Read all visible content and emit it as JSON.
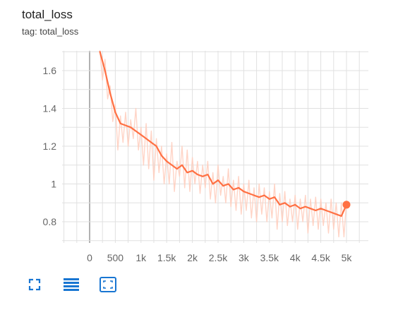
{
  "card": {
    "title": "total_loss",
    "subtitle": "tag: total_loss"
  },
  "toolbar": {
    "buttons": [
      {
        "name": "fullscreen-button",
        "icon": "fullscreen-icon"
      },
      {
        "name": "toggle-log-scale-button",
        "icon": "list-lines-icon"
      },
      {
        "name": "fit-domain-button",
        "icon": "fit-to-data-icon"
      }
    ]
  },
  "colors": {
    "series": "#ff7043",
    "series_raw": "#ffccbc",
    "grid": "#e0e0e0",
    "axis_zero": "#9e9e9e",
    "tick_text": "#666666",
    "icon": "#1976d2"
  },
  "chart_data": {
    "type": "line",
    "title": "total_loss",
    "subtitle": "tag: total_loss",
    "xlabel": "",
    "ylabel": "",
    "xlim": [
      -500,
      5400
    ],
    "ylim": [
      0.7,
      1.7
    ],
    "x_ticks": [
      0,
      500,
      1000,
      1500,
      2000,
      2500,
      3000,
      3500,
      4000,
      4500,
      5000
    ],
    "x_tick_labels": [
      "0",
      "500",
      "1k",
      "1.5k",
      "2k",
      "2.5k",
      "3k",
      "3.5k",
      "4k",
      "4.5k",
      "5k"
    ],
    "y_ticks": [
      0.8,
      1,
      1.2,
      1.4,
      1.6
    ],
    "y_tick_labels": [
      "0.8",
      "1",
      "1.2",
      "1.4",
      "1.6"
    ],
    "grid": true,
    "legend": "none",
    "series": [
      {
        "role": "smoothed",
        "x": [
          200,
          300,
          400,
          500,
          600,
          700,
          800,
          900,
          1000,
          1100,
          1200,
          1300,
          1400,
          1500,
          1600,
          1700,
          1800,
          1900,
          2000,
          2100,
          2200,
          2300,
          2400,
          2500,
          2600,
          2700,
          2800,
          2900,
          3000,
          3100,
          3200,
          3300,
          3400,
          3500,
          3600,
          3700,
          3800,
          3900,
          4000,
          4100,
          4200,
          4300,
          4400,
          4500,
          4600,
          4700,
          4800,
          4900,
          5000
        ],
        "y": [
          1.7,
          1.6,
          1.48,
          1.38,
          1.32,
          1.31,
          1.3,
          1.28,
          1.26,
          1.24,
          1.22,
          1.2,
          1.15,
          1.12,
          1.1,
          1.08,
          1.1,
          1.06,
          1.07,
          1.05,
          1.04,
          1.05,
          1.0,
          1.02,
          0.99,
          1.0,
          0.97,
          0.98,
          0.96,
          0.95,
          0.94,
          0.93,
          0.94,
          0.92,
          0.93,
          0.89,
          0.9,
          0.88,
          0.89,
          0.87,
          0.88,
          0.87,
          0.86,
          0.87,
          0.86,
          0.85,
          0.84,
          0.83,
          0.89
        ]
      },
      {
        "role": "raw",
        "x": [
          200,
          250,
          300,
          350,
          400,
          450,
          500,
          550,
          600,
          650,
          700,
          750,
          800,
          850,
          900,
          950,
          1000,
          1050,
          1100,
          1150,
          1200,
          1250,
          1300,
          1350,
          1400,
          1450,
          1500,
          1550,
          1600,
          1650,
          1700,
          1750,
          1800,
          1850,
          1900,
          1950,
          2000,
          2050,
          2100,
          2150,
          2200,
          2250,
          2300,
          2350,
          2400,
          2450,
          2500,
          2550,
          2600,
          2650,
          2700,
          2750,
          2800,
          2850,
          2900,
          2950,
          3000,
          3050,
          3100,
          3150,
          3200,
          3250,
          3300,
          3350,
          3400,
          3450,
          3500,
          3550,
          3600,
          3650,
          3700,
          3750,
          3800,
          3850,
          3900,
          3950,
          4000,
          4050,
          4100,
          4150,
          4200,
          4250,
          4300,
          4350,
          4400,
          4450,
          4500,
          4550,
          4600,
          4650,
          4700,
          4750,
          4800,
          4850,
          4900,
          4950,
          5000
        ],
        "y": [
          1.72,
          1.55,
          1.66,
          1.45,
          1.52,
          1.33,
          1.42,
          1.18,
          1.36,
          1.22,
          1.38,
          1.2,
          1.34,
          1.24,
          1.4,
          1.18,
          1.3,
          1.1,
          1.32,
          1.08,
          1.28,
          1.02,
          1.24,
          1.06,
          1.2,
          1.0,
          1.16,
          1.0,
          1.22,
          0.96,
          1.12,
          1.04,
          1.2,
          0.98,
          1.18,
          0.96,
          1.14,
          1.0,
          1.12,
          0.95,
          1.1,
          0.98,
          1.12,
          0.92,
          1.06,
          0.9,
          1.1,
          0.94,
          1.04,
          0.9,
          1.08,
          0.88,
          1.02,
          0.86,
          1.04,
          0.84,
          1.0,
          0.86,
          1.02,
          0.82,
          0.98,
          0.8,
          1.0,
          0.84,
          0.98,
          0.8,
          0.96,
          0.82,
          1.0,
          0.76,
          0.95,
          0.8,
          0.96,
          0.78,
          0.92,
          0.8,
          0.94,
          0.76,
          0.92,
          0.8,
          0.94,
          0.74,
          0.92,
          0.78,
          0.93,
          0.76,
          0.92,
          0.78,
          0.9,
          0.74,
          0.92,
          0.76,
          0.9,
          0.72,
          0.9,
          0.72,
          0.91
        ]
      }
    ]
  }
}
